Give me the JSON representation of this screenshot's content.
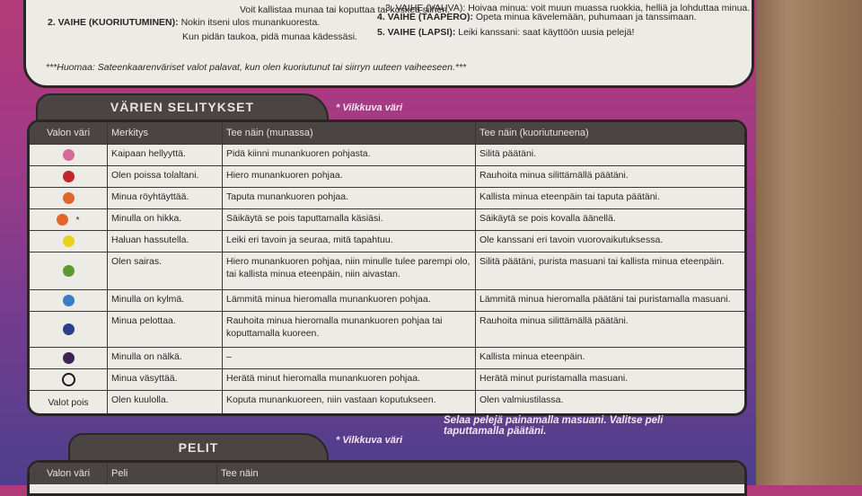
{
  "top_box": {
    "line0_left": "Voit kallistaa munaa tai koputtaa tai koskea siihen.",
    "line0_right": "3. VAIHE (VAUVA): Hoivaa minua: voit muun muassa ruokkia, helliä ja lohduttaa minua.",
    "stage2_label": "2. VAIHE (KUORIUTUMINEN):",
    "stage2_text1": "Nokin itseni ulos munankuoresta.",
    "stage2_text2": "Kun pidän taukoa, pidä munaa kädessäsi.",
    "stage4_label": "4. VAIHE (TAAPERO):",
    "stage4_text": "Opeta minua kävelemään, puhumaan ja tanssimaan.",
    "stage5_label": "5. VAIHE (LAPSI):",
    "stage5_text": "Leiki kanssani: saat käyttöön uusia pelejä!",
    "note": "***Huomaa: Sateenkaarenväriset valot palavat, kun olen kuoriutunut tai siirryn uuteen vaiheeseen.***"
  },
  "colors_section": {
    "title": "VÄRIEN SELITYKSET",
    "blink_note": "* Vilkkuva väri",
    "headers": [
      "Valon väri",
      "Merkitys",
      "Tee näin (munassa)",
      "Tee näin (kuoriutuneena)"
    ],
    "rows": [
      {
        "color": "#d46a96",
        "meaning": "Kaipaan hellyyttä.",
        "egg": "Pidä kiinni munankuoren pohjasta.",
        "hatched": "Silitä päätäni."
      },
      {
        "color": "#c4242a",
        "meaning": "Olen poissa tolaltani.",
        "egg": "Hiero munankuoren pohjaa.",
        "hatched": "Rauhoita minua silittämällä päätäni."
      },
      {
        "color": "#e0662e",
        "meaning": "Minua röyhtäyttää.",
        "egg": "Taputa munankuoren pohjaa.",
        "hatched": "Kallista minua eteenpäin tai taputa päätäni."
      },
      {
        "color": "#e0662e",
        "mark": "*",
        "meaning": "Minulla on hikka.",
        "egg": "Säikäytä se pois taputtamalla käsiäsi.",
        "hatched": "Säikäytä se pois kovalla äänellä."
      },
      {
        "color": "#e8d21e",
        "meaning": "Haluan hassutella.",
        "egg": "Leiki eri tavoin ja seuraa, mitä tapahtuu.",
        "hatched": "Ole kanssani eri tavoin vuorovaikutuksessa."
      },
      {
        "color": "#5c9a2e",
        "meaning": "Olen sairas.",
        "egg": "Hiero munankuoren pohjaa, niin minulle tulee parempi olo, tai kallista minua eteenpäin, niin aivastan.",
        "hatched": "Silitä päätäni, purista masuani tai kallista minua eteenpäin."
      },
      {
        "color": "#3c7cc4",
        "meaning": "Minulla on kylmä.",
        "egg": "Lämmitä minua hieromalla munankuoren pohjaa.",
        "hatched": "Lämmitä minua hieromalla päätäni tai puristamalla masuani."
      },
      {
        "color": "#2c3f8c",
        "meaning": "Minua pelottaa.",
        "egg": "Rauhoita minua hieromalla munankuoren pohjaa tai koputtamalla kuoreen.",
        "hatched": "Rauhoita minua silittämällä päätäni."
      },
      {
        "color": "#3e2454",
        "meaning": "Minulla on nälkä.",
        "egg": "–",
        "hatched": "Kallista minua eteenpäin."
      },
      {
        "color": "outline",
        "meaning": "Minua väsyttää.",
        "egg": "Herätä minut hieromalla munankuoren pohjaa.",
        "hatched": "Herätä minut puristamalla masuani."
      },
      {
        "label": "Valot pois",
        "meaning": "Olen kuulolla.",
        "egg": "Koputa munankuoreen, niin vastaan koputukseen.",
        "hatched": "Olen valmiustilassa."
      }
    ]
  },
  "games_section": {
    "title": "PELIT",
    "blink_note": "* Vilkkuva väri",
    "instruction": "Selaa pelejä painamalla masuani. Valitse peli taputtamalla päätäni.",
    "headers": [
      "Valon väri",
      "Peli",
      "Tee näin"
    ]
  }
}
